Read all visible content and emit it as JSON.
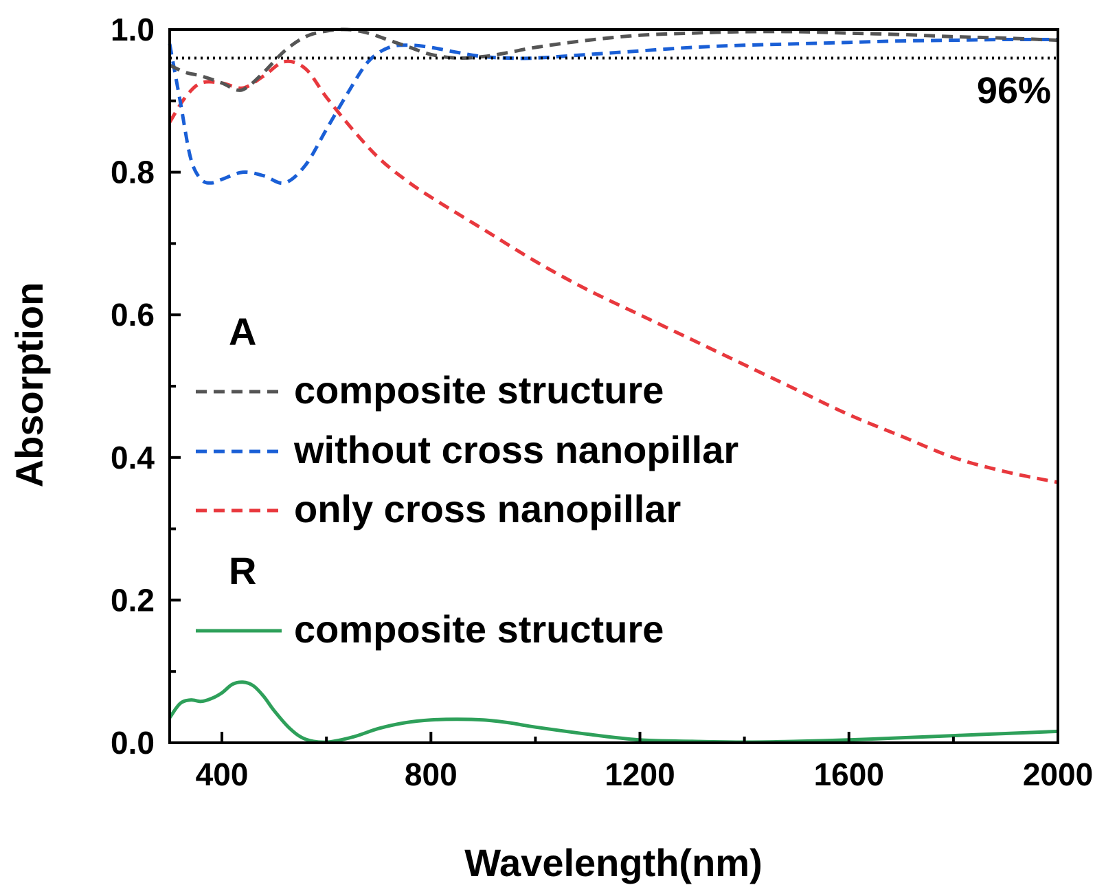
{
  "chart_data": {
    "type": "line",
    "title": "",
    "xlabel": "Wavelength(nm)",
    "ylabel": "Absorption",
    "xlim": [
      300,
      2000
    ],
    "ylim": [
      0,
      1.0
    ],
    "xticks": [
      400,
      800,
      1200,
      1600,
      2000
    ],
    "xtick_labels": [
      "400",
      "800",
      "1200",
      "1600",
      "2000"
    ],
    "yticks": [
      0.0,
      0.2,
      0.4,
      0.6,
      0.8,
      1.0
    ],
    "ytick_labels": [
      "0.0",
      "0.2",
      "0.4",
      "0.6",
      "0.8",
      "1.0"
    ],
    "grid": false,
    "reference_line": {
      "y": 0.96,
      "label": "96%",
      "style": "dotted",
      "color": "#000000"
    },
    "legend": {
      "placement": "center-left",
      "groups": [
        {
          "heading": "A",
          "entries": [
            "composite structure",
            "without cross nanopillar",
            "only cross nanopillar"
          ]
        },
        {
          "heading": "R",
          "entries": [
            "composite structure"
          ]
        }
      ]
    },
    "series": [
      {
        "name": "composite structure",
        "group": "A",
        "style": "dashed",
        "color": "#555555",
        "x": [
          300,
          330,
          360,
          400,
          430,
          450,
          480,
          520,
          560,
          600,
          640,
          680,
          720,
          760,
          800,
          850,
          900,
          950,
          1000,
          1100,
          1200,
          1300,
          1400,
          1500,
          1600,
          1700,
          1800,
          1900,
          2000
        ],
        "y": [
          0.95,
          0.94,
          0.935,
          0.925,
          0.915,
          0.92,
          0.94,
          0.97,
          0.99,
          0.998,
          1.0,
          0.995,
          0.985,
          0.975,
          0.965,
          0.96,
          0.962,
          0.968,
          0.975,
          0.985,
          0.992,
          0.995,
          0.997,
          0.997,
          0.995,
          0.993,
          0.99,
          0.988,
          0.985
        ]
      },
      {
        "name": "without cross nanopillar",
        "group": "A",
        "style": "dashed",
        "color": "#1a5fd6",
        "x": [
          300,
          320,
          340,
          360,
          380,
          400,
          440,
          480,
          520,
          560,
          600,
          640,
          680,
          720,
          760,
          800,
          850,
          900,
          950,
          1000,
          1100,
          1200,
          1300,
          1400,
          1500,
          1600,
          1700,
          1800,
          1900,
          2000
        ],
        "y": [
          0.98,
          0.9,
          0.82,
          0.79,
          0.785,
          0.79,
          0.8,
          0.795,
          0.785,
          0.81,
          0.86,
          0.91,
          0.955,
          0.975,
          0.978,
          0.975,
          0.968,
          0.962,
          0.96,
          0.96,
          0.965,
          0.97,
          0.975,
          0.978,
          0.98,
          0.982,
          0.984,
          0.985,
          0.986,
          0.986
        ]
      },
      {
        "name": "only cross nanopillar",
        "group": "A",
        "style": "dashed",
        "color": "#e8383d",
        "x": [
          300,
          330,
          360,
          400,
          440,
          480,
          520,
          560,
          600,
          650,
          700,
          750,
          800,
          900,
          1000,
          1100,
          1200,
          1300,
          1400,
          1500,
          1600,
          1700,
          1800,
          1900,
          2000
        ],
        "y": [
          0.87,
          0.905,
          0.925,
          0.925,
          0.918,
          0.935,
          0.955,
          0.945,
          0.905,
          0.86,
          0.82,
          0.79,
          0.765,
          0.72,
          0.675,
          0.635,
          0.6,
          0.565,
          0.53,
          0.495,
          0.46,
          0.43,
          0.4,
          0.38,
          0.365
        ]
      },
      {
        "name": "composite structure",
        "group": "R",
        "style": "solid",
        "color": "#2ea05a",
        "x": [
          300,
          320,
          340,
          360,
          380,
          400,
          420,
          440,
          460,
          480,
          500,
          530,
          560,
          600,
          650,
          700,
          750,
          800,
          850,
          900,
          950,
          1000,
          1100,
          1200,
          1300,
          1400,
          1500,
          1600,
          1700,
          1800,
          1900,
          2000
        ],
        "y": [
          0.035,
          0.055,
          0.06,
          0.058,
          0.062,
          0.07,
          0.082,
          0.085,
          0.08,
          0.065,
          0.045,
          0.02,
          0.005,
          0.001,
          0.008,
          0.02,
          0.028,
          0.032,
          0.033,
          0.032,
          0.028,
          0.022,
          0.012,
          0.004,
          0.002,
          0.001,
          0.002,
          0.004,
          0.007,
          0.01,
          0.013,
          0.016
        ]
      }
    ]
  }
}
